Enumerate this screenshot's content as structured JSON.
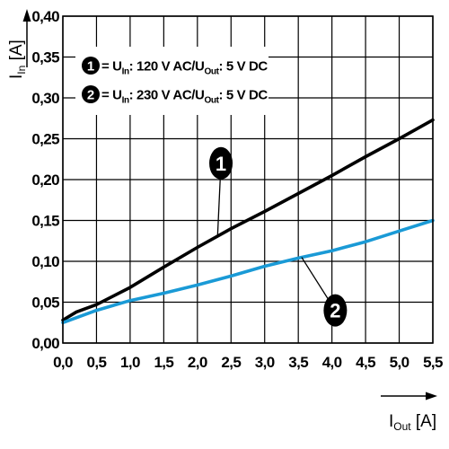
{
  "chart_data": {
    "type": "line",
    "xlabel": {
      "main": "I",
      "sub": "Out",
      "unit": " [A]"
    },
    "ylabel": {
      "main": "I",
      "sub": "In",
      "unit": " [A]"
    },
    "xlim": [
      0,
      5.5
    ],
    "ylim": [
      0,
      0.4
    ],
    "xticks": [
      "0,0",
      "0,5",
      "1,0",
      "1,5",
      "2,0",
      "2,5",
      "3,0",
      "3,5",
      "4,0",
      "4,5",
      "5,0",
      "5,5"
    ],
    "yticks": [
      "0,00",
      "0,05",
      "0,10",
      "0,15",
      "0,20",
      "0,25",
      "0,30",
      "0,35",
      "0,40"
    ],
    "grid": true,
    "series": [
      {
        "marker": "1",
        "color": "#000000",
        "legend": {
          "pre": " = U",
          "sub1": "In",
          "mid": ": 120 V AC/U",
          "sub2": "Out",
          "post": ": 5 V DC"
        },
        "x": [
          0,
          0.2,
          0.5,
          1.0,
          1.5,
          2.0,
          2.5,
          3.0,
          3.5,
          4.0,
          4.5,
          5.0,
          5.5
        ],
        "y": [
          0.028,
          0.038,
          0.047,
          0.068,
          0.093,
          0.117,
          0.14,
          0.161,
          0.183,
          0.205,
          0.228,
          0.25,
          0.273
        ]
      },
      {
        "marker": "2",
        "color": "#1a9ad6",
        "legend": {
          "pre": " = U",
          "sub1": "In",
          "mid": ": 230 V AC/U",
          "sub2": "Out",
          "post": ": 5 V DC"
        },
        "x": [
          0,
          0.5,
          1.0,
          1.5,
          2.0,
          2.5,
          3.0,
          3.5,
          4.0,
          4.5,
          5.0,
          5.5
        ],
        "y": [
          0.025,
          0.04,
          0.052,
          0.061,
          0.071,
          0.082,
          0.094,
          0.104,
          0.113,
          0.124,
          0.137,
          0.15
        ]
      }
    ],
    "markers": [
      {
        "label": "1",
        "series": 0,
        "at_x": 2.3,
        "bubble_x": 2.35,
        "bubble_y": 0.22
      },
      {
        "label": "2",
        "series": 1,
        "at_x": 3.55,
        "bubble_x": 4.05,
        "bubble_y": 0.04
      }
    ],
    "legend_placement": "top-left"
  }
}
